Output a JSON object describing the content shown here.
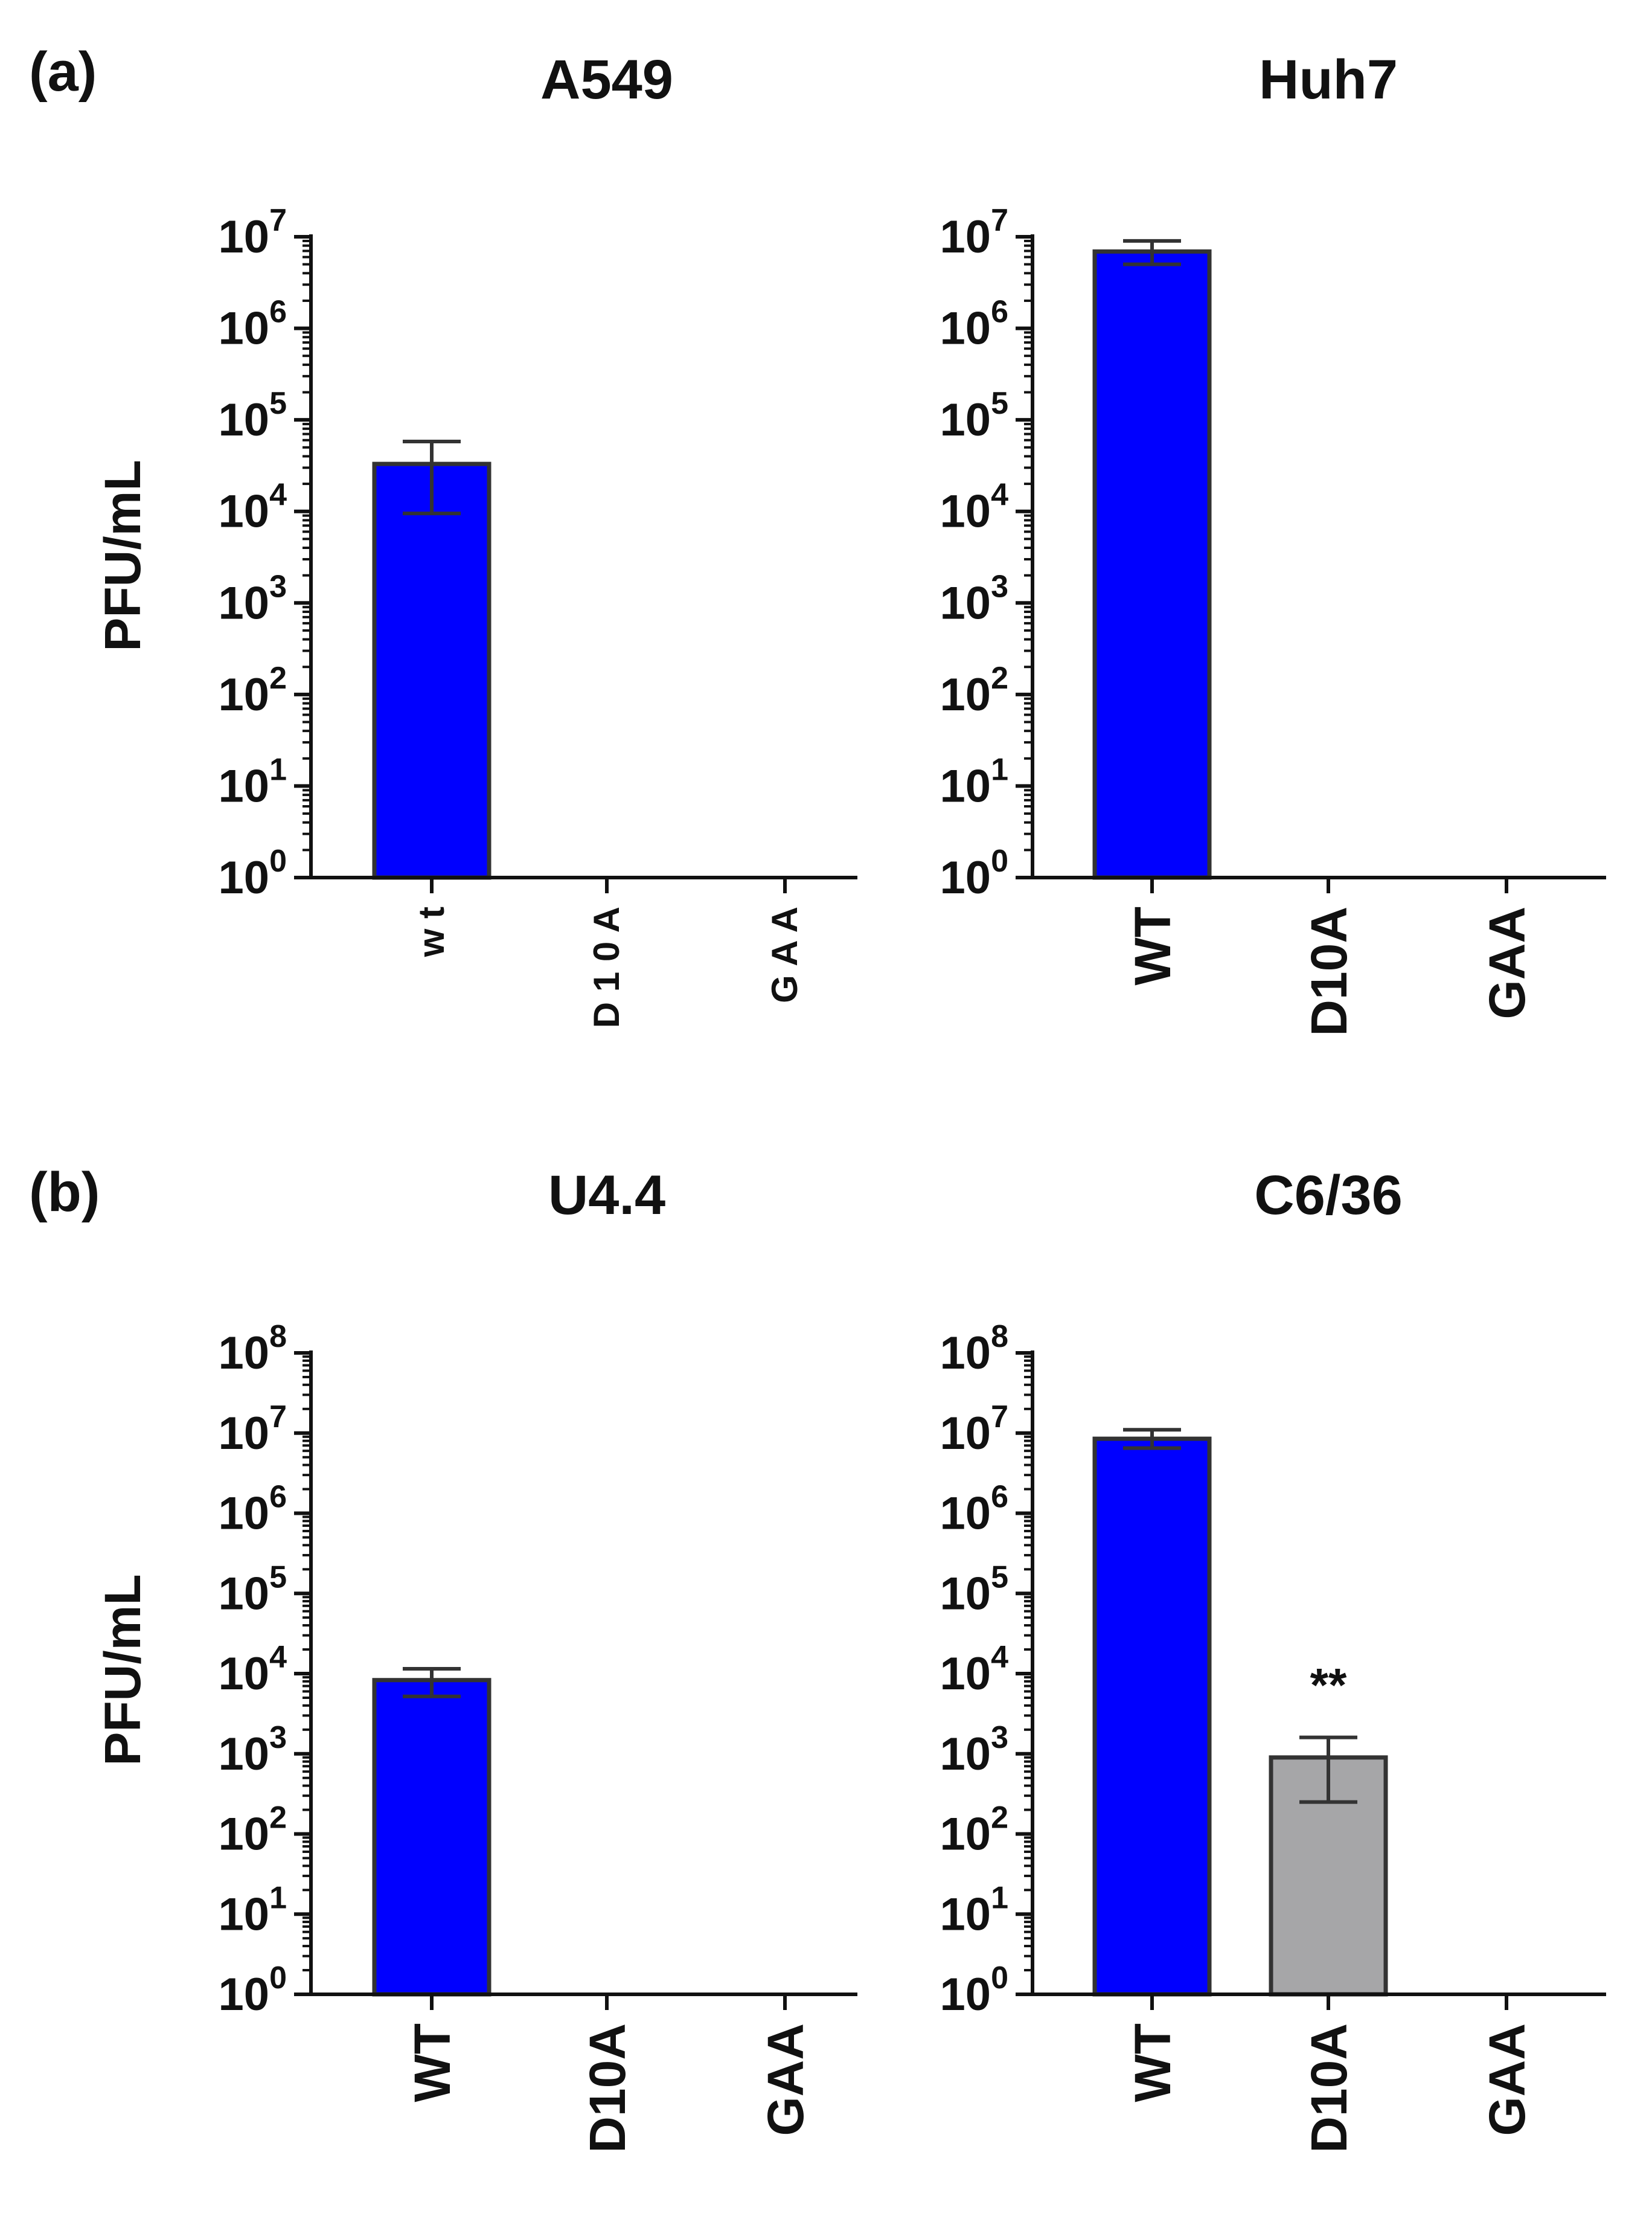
{
  "figure": {
    "panel_labels": [
      "(a)",
      "(b)"
    ],
    "colors": {
      "wt_bar": "#0000ff",
      "mutant_bar": "#a6a6a8",
      "outline": "#333333",
      "axis": "#111111"
    }
  },
  "chart_data": [
    {
      "type": "bar",
      "panel": "(a)",
      "title": "A549",
      "ylabel": "PFU/mL",
      "yscale": "log10",
      "ylim_exp": [
        0,
        7
      ],
      "categories": [
        "w t",
        "D 1 0 A",
        "G A A"
      ],
      "values": [
        33000,
        0,
        0
      ],
      "errors": [
        {
          "low": 9500,
          "high": 58000
        },
        null,
        null
      ],
      "bar_colors": [
        "#0000ff",
        null,
        null
      ],
      "annotations": [
        null,
        null,
        null
      ]
    },
    {
      "type": "bar",
      "panel": "(a)",
      "title": "Huh7",
      "ylabel": "",
      "yscale": "log10",
      "ylim_exp": [
        0,
        7
      ],
      "categories": [
        "WT",
        "D10A",
        "GAA"
      ],
      "values": [
        6900000,
        0,
        0
      ],
      "errors": [
        {
          "low": 5000000,
          "high": 9000000
        },
        null,
        null
      ],
      "bar_colors": [
        "#0000ff",
        null,
        null
      ],
      "annotations": [
        null,
        null,
        null
      ]
    },
    {
      "type": "bar",
      "panel": "(b)",
      "title": "U4.4",
      "ylabel": "PFU/mL",
      "yscale": "log10",
      "ylim_exp": [
        0,
        8
      ],
      "categories": [
        "WT",
        "D10A",
        "GAA"
      ],
      "values": [
        8300,
        0,
        0
      ],
      "errors": [
        {
          "low": 5200,
          "high": 11500
        },
        null,
        null
      ],
      "bar_colors": [
        "#0000ff",
        null,
        null
      ],
      "annotations": [
        null,
        null,
        null
      ]
    },
    {
      "type": "bar",
      "panel": "(b)",
      "title": "C6/36",
      "ylabel": "",
      "yscale": "log10",
      "ylim_exp": [
        0,
        8
      ],
      "categories": [
        "WT",
        "D10A",
        "GAA"
      ],
      "values": [
        8500000,
        900,
        0
      ],
      "errors": [
        {
          "low": 6500000,
          "high": 11000000
        },
        {
          "low": 250,
          "high": 1600
        },
        null
      ],
      "bar_colors": [
        "#0000ff",
        "#a6a6a8",
        null
      ],
      "annotations": [
        null,
        "**",
        null
      ]
    }
  ]
}
